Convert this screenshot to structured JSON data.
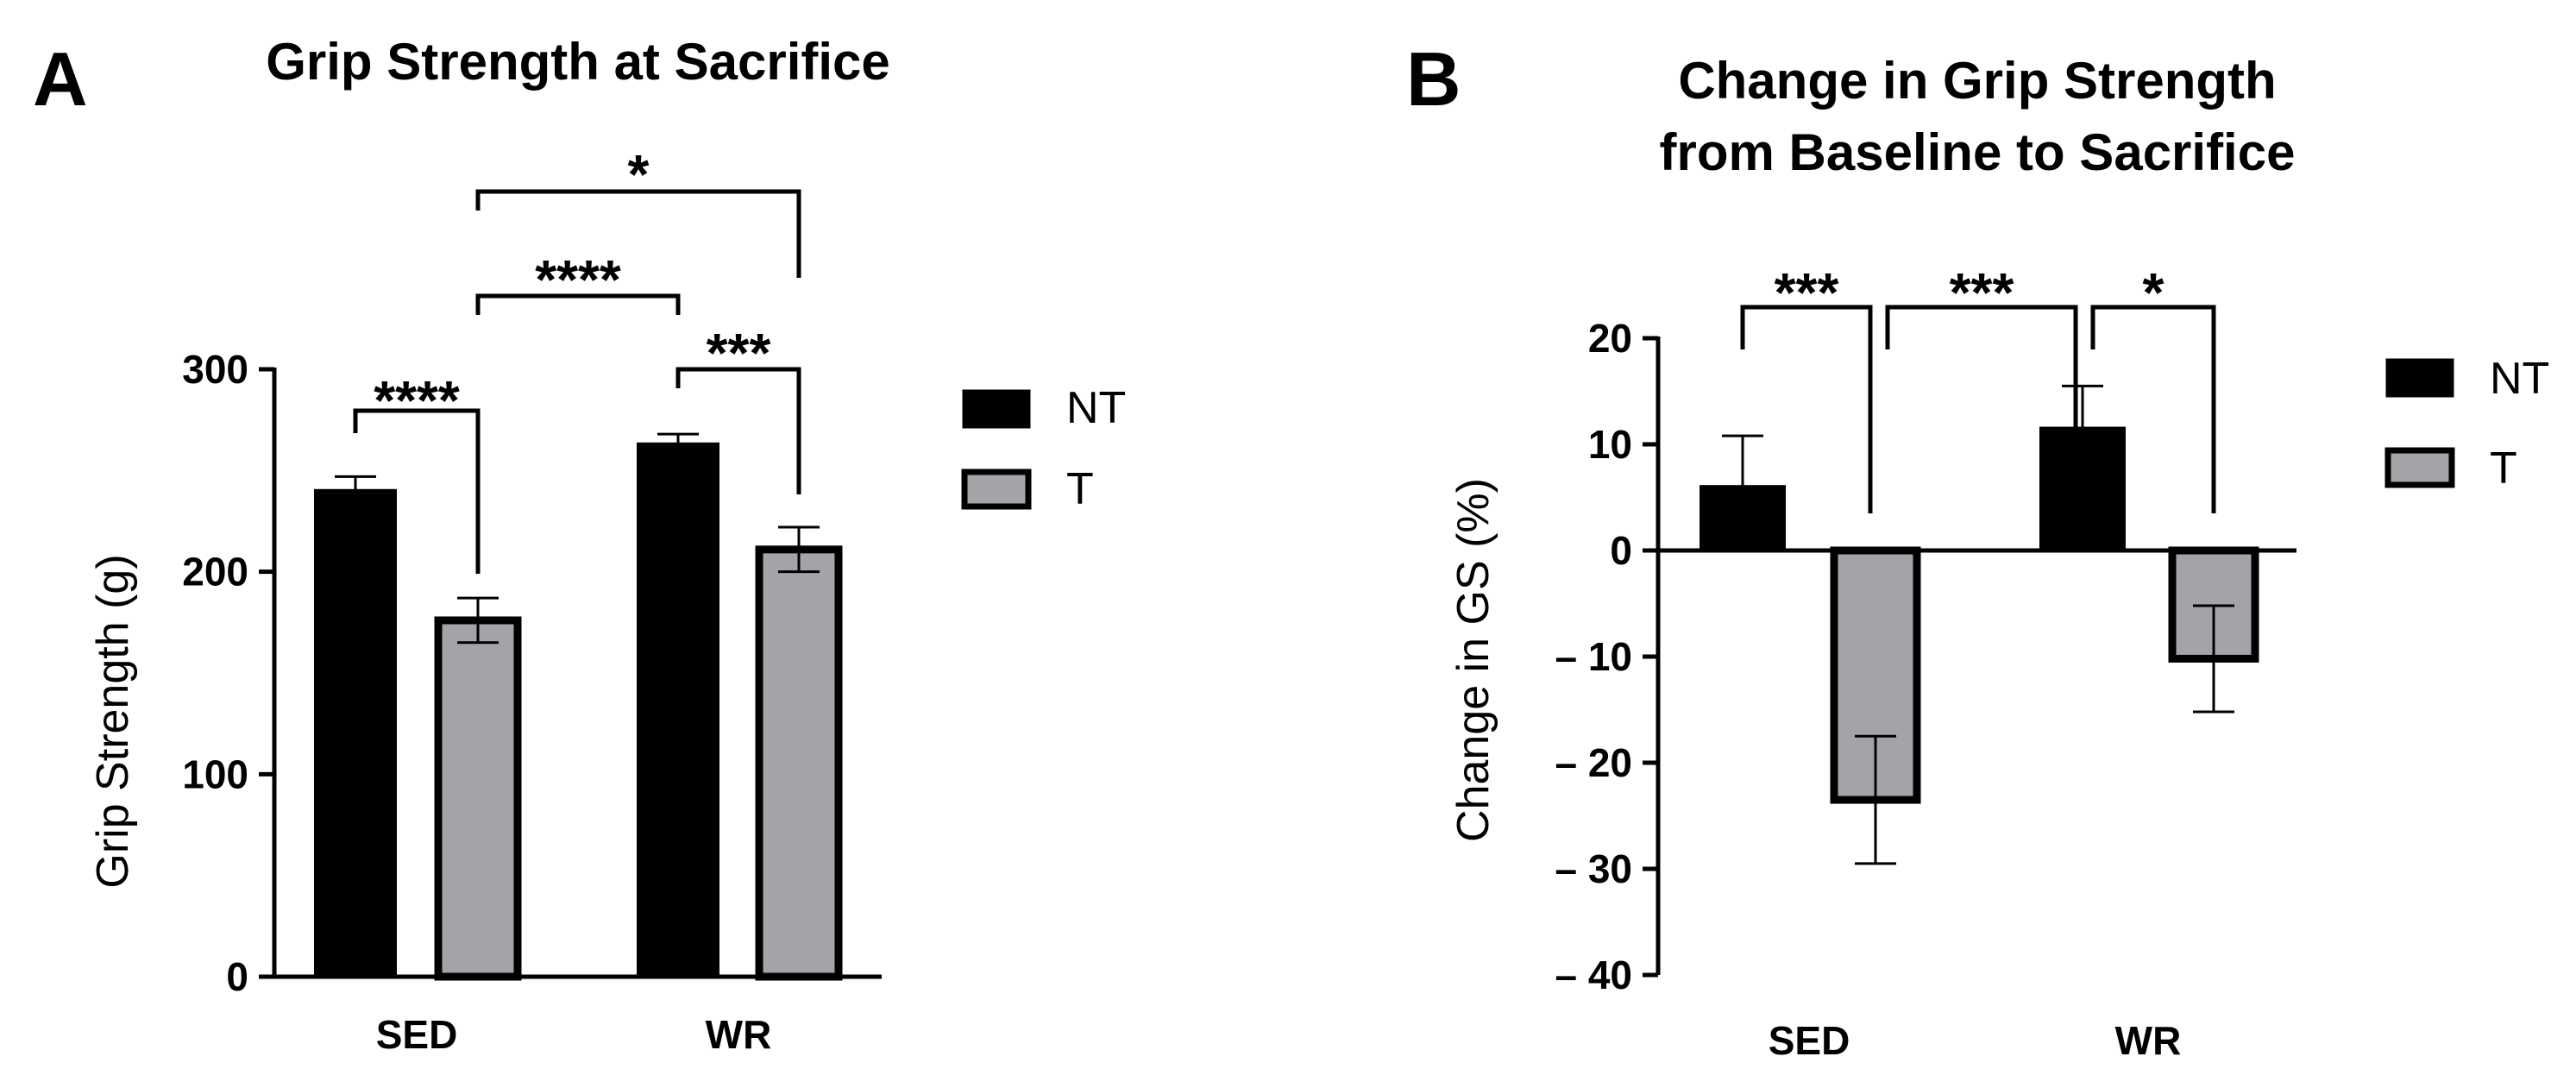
{
  "chart_data": [
    {
      "panel": "A",
      "type": "bar",
      "title": "Grip Strength at Sacrifice",
      "ylabel": "Grip Strength (g)",
      "xlabel": "",
      "ylim": [
        0,
        300
      ],
      "yticks": [
        0,
        100,
        200,
        300
      ],
      "categories": [
        "SED",
        "WR"
      ],
      "series": [
        {
          "name": "NT",
          "color": "#000000",
          "values": [
            240,
            263
          ],
          "errors": [
            7,
            5
          ]
        },
        {
          "name": "T",
          "color": "#a4a3a8",
          "values": [
            176,
            211
          ],
          "errors": [
            11,
            11
          ]
        }
      ],
      "significance": [
        {
          "label": "****",
          "from": "SED-NT",
          "to": "SED-T"
        },
        {
          "label": "****",
          "from": "SED-T",
          "to": "WR-NT"
        },
        {
          "label": "***",
          "from": "WR-NT",
          "to": "WR-T"
        },
        {
          "label": "*",
          "from": "SED-T",
          "to": "WR-T"
        }
      ],
      "legend": [
        "NT",
        "T"
      ]
    },
    {
      "panel": "B",
      "type": "bar",
      "title": "Change in Grip Strength",
      "title_line2": "from Baseline to Sacrifice",
      "ylabel": "Change in GS (%)",
      "xlabel": "",
      "ylim": [
        -40,
        20
      ],
      "yticks": [
        20,
        10,
        0,
        -10,
        -20,
        -30,
        -40
      ],
      "ytick_labels": [
        "20",
        "10",
        "0",
        "– 10",
        "– 20",
        "– 30",
        "– 40"
      ],
      "categories": [
        "SED",
        "WR"
      ],
      "series": [
        {
          "name": "NT",
          "color": "#000000",
          "values": [
            6,
            11.5
          ],
          "errors": [
            4.8,
            4
          ]
        },
        {
          "name": "T",
          "color": "#a4a3a8",
          "values": [
            -23.5,
            -10.2
          ],
          "errors": [
            6,
            5
          ]
        }
      ],
      "significance": [
        {
          "label": "***",
          "from": "SED-NT",
          "to": "SED-T"
        },
        {
          "label": "***",
          "from": "SED-T",
          "to": "WR-NT"
        },
        {
          "label": "*",
          "from": "WR-NT",
          "to": "WR-T"
        }
      ],
      "legend": [
        "NT",
        "T"
      ]
    }
  ]
}
